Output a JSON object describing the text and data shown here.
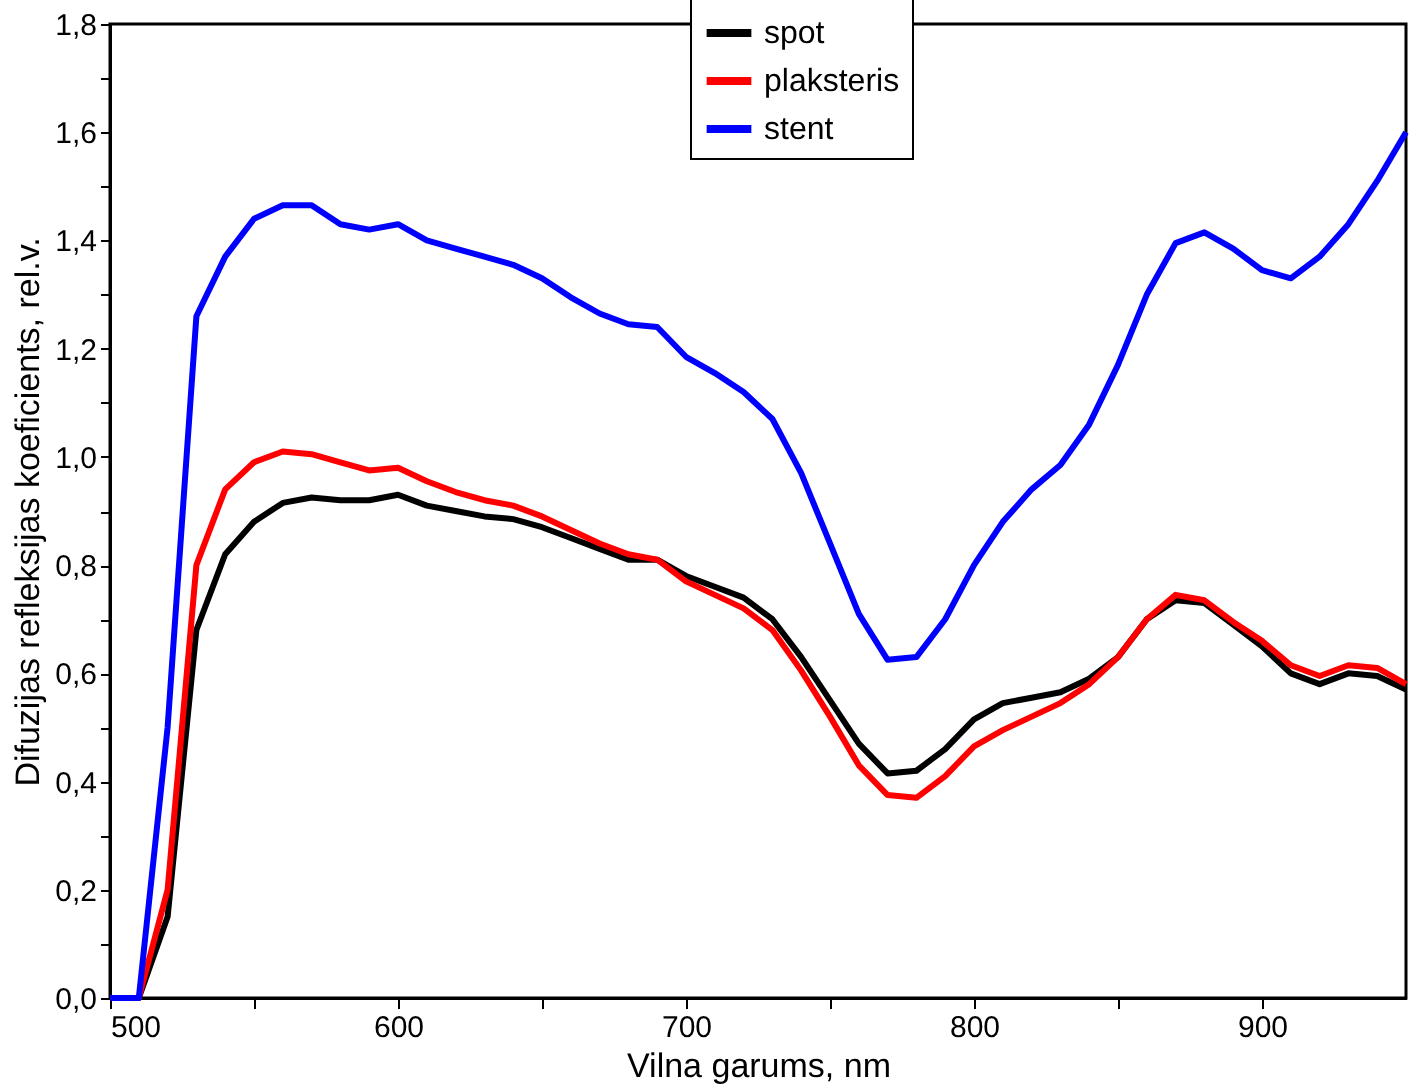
{
  "chart_data": {
    "type": "line",
    "xlabel": "Vilna garums, nm",
    "ylabel": "Difuzijas refleksijas koeficients, rel.v.",
    "x": [
      500,
      510,
      520,
      530,
      540,
      550,
      560,
      570,
      580,
      590,
      600,
      610,
      620,
      630,
      640,
      650,
      660,
      670,
      680,
      690,
      700,
      710,
      720,
      730,
      740,
      750,
      760,
      770,
      780,
      790,
      800,
      810,
      820,
      830,
      840,
      850,
      860,
      870,
      880,
      890,
      900,
      910,
      920,
      930,
      940,
      950
    ],
    "series": [
      {
        "name": "spot",
        "color": "#000000",
        "values": [
          0,
          0,
          0.15,
          0.68,
          0.82,
          0.88,
          0.915,
          0.925,
          0.92,
          0.92,
          0.93,
          0.91,
          0.9,
          0.89,
          0.885,
          0.87,
          0.85,
          0.83,
          0.81,
          0.81,
          0.78,
          0.76,
          0.74,
          0.7,
          0.63,
          0.55,
          0.47,
          0.415,
          0.42,
          0.46,
          0.515,
          0.545,
          0.555,
          0.565,
          0.59,
          0.63,
          0.7,
          0.735,
          0.73,
          0.69,
          0.65,
          0.6,
          0.58,
          0.6,
          0.595,
          0.57
        ]
      },
      {
        "name": "plaksteris",
        "color": "#ff0000",
        "values": [
          0,
          0,
          0.2,
          0.8,
          0.94,
          0.99,
          1.01,
          1.005,
          0.99,
          0.975,
          0.98,
          0.955,
          0.935,
          0.92,
          0.91,
          0.89,
          0.865,
          0.84,
          0.82,
          0.81,
          0.77,
          0.745,
          0.72,
          0.68,
          0.605,
          0.52,
          0.43,
          0.375,
          0.37,
          0.41,
          0.465,
          0.495,
          0.52,
          0.545,
          0.58,
          0.63,
          0.7,
          0.745,
          0.735,
          0.695,
          0.66,
          0.615,
          0.595,
          0.615,
          0.61,
          0.58
        ]
      },
      {
        "name": "stent",
        "color": "#0000ff",
        "values": [
          0,
          0,
          0.5,
          1.26,
          1.37,
          1.44,
          1.465,
          1.465,
          1.43,
          1.42,
          1.43,
          1.4,
          1.385,
          1.37,
          1.355,
          1.33,
          1.295,
          1.265,
          1.245,
          1.24,
          1.185,
          1.155,
          1.12,
          1.07,
          0.97,
          0.84,
          0.71,
          0.625,
          0.63,
          0.7,
          0.8,
          0.88,
          0.94,
          0.985,
          1.06,
          1.17,
          1.3,
          1.395,
          1.415,
          1.385,
          1.345,
          1.33,
          1.37,
          1.43,
          1.51,
          1.6
        ]
      }
    ],
    "xlim": [
      500,
      950
    ],
    "xticks": [
      500,
      {
        "value": 550,
        "label": null
      },
      600,
      {
        "value": 650,
        "label": null
      },
      700,
      {
        "value": 750,
        "label": null
      },
      800,
      {
        "value": 850,
        "label": null
      },
      900
    ],
    "ylim": [
      0,
      1.8
    ],
    "yticks": [
      {
        "value": 0,
        "label": "0,0"
      },
      {
        "value": 0.1,
        "label": null
      },
      {
        "value": 0.2,
        "label": "0,2"
      },
      {
        "value": 0.3,
        "label": null
      },
      {
        "value": 0.4,
        "label": "0,4"
      },
      {
        "value": 0.5,
        "label": null
      },
      {
        "value": 0.6,
        "label": "0,6"
      },
      {
        "value": 0.7,
        "label": null
      },
      {
        "value": 0.8,
        "label": "0,8"
      },
      {
        "value": 0.9,
        "label": null
      },
      {
        "value": 1,
        "label": "1,0"
      },
      {
        "value": 1.1,
        "label": null
      },
      {
        "value": 1.2,
        "label": "1,2"
      },
      {
        "value": 1.3,
        "label": null
      },
      {
        "value": 1.4,
        "label": "1,4"
      },
      {
        "value": 1.5,
        "label": null
      },
      {
        "value": 1.6,
        "label": "1,6"
      },
      {
        "value": 1.7,
        "label": null
      },
      {
        "value": 1.8,
        "label": "1,8"
      }
    ],
    "grid": false,
    "legend": "top"
  }
}
